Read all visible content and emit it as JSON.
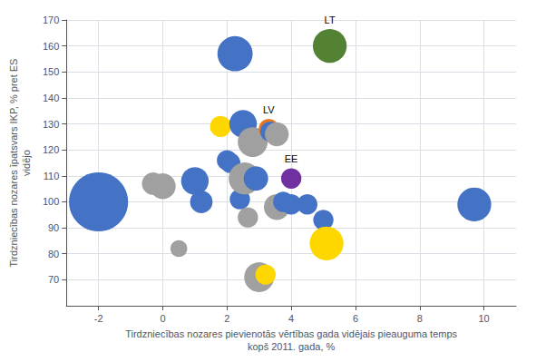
{
  "chart_data": {
    "type": "scatter",
    "xlabel": "Tirdzniecības nozares pievienotās vērtības gada vidējais pieauguma temps\nkopš 2011. gada, %",
    "ylabel": "Tirdzniecības nozares īpatsvars IKP, % pret ES\nvidējo",
    "xlim": [
      -3,
      11
    ],
    "ylim": [
      60,
      170
    ],
    "xticks": [
      -2,
      0,
      2,
      4,
      6,
      8,
      10
    ],
    "yticks": [
      70,
      80,
      90,
      100,
      110,
      120,
      130,
      140,
      150,
      160,
      170
    ],
    "grid": true,
    "x": [
      -2.0,
      -0.3,
      0.0,
      0.5,
      1.0,
      1.2,
      1.8,
      2.0,
      2.1,
      2.25,
      2.4,
      2.5,
      2.55,
      2.65,
      2.8,
      2.9,
      3.0,
      3.2,
      3.3,
      3.35,
      3.55,
      3.55,
      3.75,
      4.0,
      4.0,
      4.5,
      5.0,
      5.1,
      5.2,
      9.7
    ],
    "y": [
      100,
      107,
      106,
      82,
      108,
      100,
      129,
      116,
      115,
      157,
      101,
      130,
      109,
      94,
      123,
      109,
      71,
      72,
      128,
      127,
      126,
      98,
      100,
      109,
      99,
      99,
      93,
      84,
      160,
      99
    ],
    "sizes": [
      2200,
      320,
      420,
      180,
      480,
      320,
      280,
      260,
      260,
      780,
      260,
      480,
      640,
      260,
      560,
      380,
      560,
      260,
      260,
      260,
      360,
      420,
      260,
      260,
      260,
      260,
      260,
      720,
      720,
      720
    ],
    "colors": [
      "#4472C4",
      "#A0A0A0",
      "#A0A0A0",
      "#A0A0A0",
      "#4472C4",
      "#4472C4",
      "#FFD700",
      "#4472C4",
      "#4472C4",
      "#4472C4",
      "#4472C4",
      "#4472C4",
      "#A0A0A0",
      "#A0A0A0",
      "#A0A0A0",
      "#4472C4",
      "#A0A0A0",
      "#FFD700",
      "#E87722",
      "#4472C4",
      "#A0A0A0",
      "#A0A0A0",
      "#4472C4",
      "#7030A0",
      "#4472C4",
      "#4472C4",
      "#4472C4",
      "#FFD700",
      "#548235",
      "#4472C4"
    ],
    "labels": [
      null,
      null,
      null,
      null,
      null,
      null,
      null,
      null,
      null,
      null,
      null,
      null,
      null,
      null,
      null,
      null,
      null,
      null,
      "LV",
      null,
      null,
      null,
      null,
      "EE",
      null,
      null,
      null,
      null,
      "LT",
      null
    ]
  }
}
